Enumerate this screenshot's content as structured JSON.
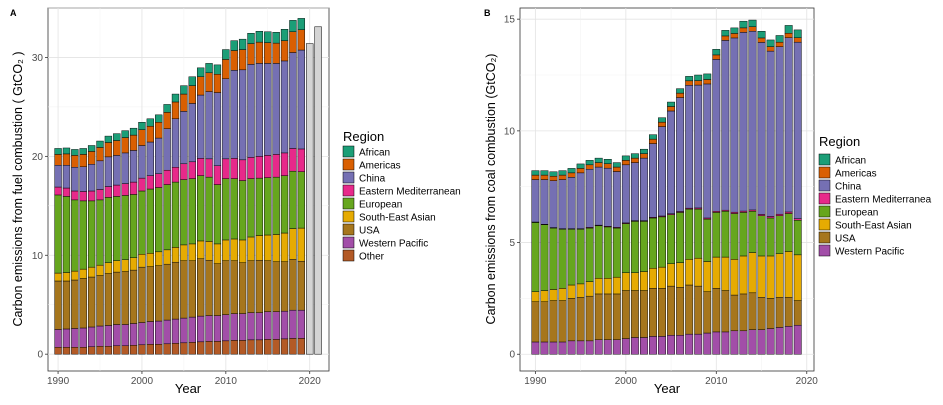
{
  "palette": {
    "African": "#1b9e77",
    "Americas": "#d95f02",
    "China": "#7570b3",
    "Eastern Mediterranean": "#e7298a",
    "European": "#66a61e",
    "South-East Asian": "#e6ab02",
    "USA": "#a6761d",
    "Western Pacific": "#a24ea8",
    "Other": "#b35a26",
    "projection": "#d4d4d4"
  },
  "chart_data": [
    {
      "type": "bar",
      "panel_label": "A",
      "stacked": true,
      "xlabel": "Year",
      "ylabel": "Carbon emissions from fuel combustion ( GtCO₂ )",
      "xlim": [
        1988.8,
        2022.3
      ],
      "ylim": [
        -1.7,
        35
      ],
      "x_ticks": [
        1990,
        2000,
        2010,
        2020
      ],
      "y_ticks": [
        0,
        10,
        20,
        30
      ],
      "grid": true,
      "legend_title": "Region",
      "legend_position": "right",
      "legend": [
        "African",
        "Americas",
        "China",
        "Eastern Mediterranean",
        "European",
        "South-East Asian",
        "USA",
        "Western Pacific",
        "Other"
      ],
      "x": [
        1990,
        1991,
        1992,
        1993,
        1994,
        1995,
        1996,
        1997,
        1998,
        1999,
        2000,
        2001,
        2002,
        2003,
        2004,
        2005,
        2006,
        2007,
        2008,
        2009,
        2010,
        2011,
        2012,
        2013,
        2014,
        2015,
        2016,
        2017,
        2018,
        2019
      ],
      "series": [
        {
          "name": "Other",
          "values": [
            0.7,
            0.7,
            0.7,
            0.7,
            0.75,
            0.8,
            0.8,
            0.85,
            0.85,
            0.9,
            0.95,
            1.0,
            1.0,
            1.05,
            1.1,
            1.15,
            1.2,
            1.25,
            1.3,
            1.3,
            1.35,
            1.4,
            1.4,
            1.45,
            1.45,
            1.5,
            1.5,
            1.55,
            1.6,
            1.6
          ]
        },
        {
          "name": "Western Pacific",
          "values": [
            1.8,
            1.85,
            1.9,
            1.95,
            2.0,
            2.05,
            2.1,
            2.15,
            2.15,
            2.2,
            2.25,
            2.3,
            2.35,
            2.4,
            2.45,
            2.5,
            2.55,
            2.6,
            2.6,
            2.6,
            2.65,
            2.7,
            2.7,
            2.75,
            2.75,
            2.8,
            2.8,
            2.8,
            2.85,
            2.85
          ]
        },
        {
          "name": "USA",
          "values": [
            4.9,
            4.85,
            4.9,
            5.0,
            5.05,
            5.1,
            5.25,
            5.3,
            5.35,
            5.4,
            5.6,
            5.55,
            5.6,
            5.65,
            5.75,
            5.8,
            5.7,
            5.8,
            5.6,
            5.25,
            5.45,
            5.35,
            5.15,
            5.25,
            5.3,
            5.15,
            5.05,
            5.0,
            5.15,
            4.95
          ]
        },
        {
          "name": "South-East Asian",
          "values": [
            0.8,
            0.85,
            0.9,
            0.95,
            1.0,
            1.05,
            1.1,
            1.15,
            1.2,
            1.25,
            1.3,
            1.35,
            1.4,
            1.45,
            1.5,
            1.6,
            1.7,
            1.8,
            1.9,
            2.0,
            2.1,
            2.2,
            2.3,
            2.4,
            2.5,
            2.6,
            2.75,
            2.9,
            3.1,
            3.35
          ]
        },
        {
          "name": "European",
          "values": [
            7.9,
            7.7,
            7.2,
            6.9,
            6.7,
            6.6,
            6.6,
            6.5,
            6.5,
            6.4,
            6.4,
            6.5,
            6.5,
            6.6,
            6.6,
            6.6,
            6.6,
            6.6,
            6.5,
            6.0,
            6.2,
            6.1,
            6.0,
            5.9,
            5.8,
            5.8,
            5.8,
            5.8,
            5.8,
            5.7
          ]
        },
        {
          "name": "Eastern Mediterranean",
          "values": [
            0.8,
            0.85,
            0.9,
            0.95,
            1.0,
            1.05,
            1.1,
            1.15,
            1.2,
            1.25,
            1.3,
            1.35,
            1.4,
            1.45,
            1.5,
            1.6,
            1.7,
            1.75,
            1.85,
            1.9,
            2.0,
            2.05,
            2.1,
            2.15,
            2.2,
            2.25,
            2.3,
            2.3,
            2.3,
            2.3
          ]
        },
        {
          "name": "China",
          "values": [
            2.2,
            2.3,
            2.4,
            2.5,
            2.7,
            2.9,
            3.0,
            3.0,
            3.1,
            3.2,
            3.3,
            3.4,
            3.6,
            4.2,
            4.9,
            5.3,
            5.9,
            6.4,
            6.8,
            7.4,
            8.1,
            8.9,
            9.1,
            9.4,
            9.4,
            9.3,
            9.2,
            9.3,
            9.7,
            10.0
          ]
        },
        {
          "name": "Americas",
          "values": [
            1.1,
            1.15,
            1.2,
            1.25,
            1.3,
            1.35,
            1.45,
            1.5,
            1.55,
            1.55,
            1.6,
            1.6,
            1.6,
            1.65,
            1.7,
            1.75,
            1.8,
            1.85,
            1.9,
            1.85,
            1.95,
            2.0,
            2.05,
            2.1,
            2.15,
            2.1,
            2.05,
            2.05,
            2.1,
            2.05
          ]
        },
        {
          "name": "African",
          "values": [
            0.6,
            0.6,
            0.6,
            0.6,
            0.6,
            0.65,
            0.65,
            0.7,
            0.7,
            0.7,
            0.75,
            0.75,
            0.75,
            0.8,
            0.8,
            0.85,
            0.9,
            0.9,
            0.95,
            0.95,
            1.0,
            1.0,
            1.05,
            1.05,
            1.1,
            1.1,
            1.1,
            1.15,
            1.15,
            1.15
          ]
        }
      ],
      "projection": {
        "x": [
          2020,
          2021
        ],
        "values": [
          31.4,
          33.1
        ]
      }
    },
    {
      "type": "bar",
      "panel_label": "B",
      "stacked": true,
      "xlabel": "Year",
      "ylabel": "Carbon emissions from coal combustion (GtCO₂)",
      "xlim": [
        1988.3,
        2020.8
      ],
      "ylim": [
        -0.75,
        15.5
      ],
      "x_ticks": [
        1990,
        2000,
        2010,
        2020
      ],
      "y_ticks": [
        0,
        5,
        10,
        15
      ],
      "grid": true,
      "legend_title": "Region",
      "legend_position": "right",
      "legend": [
        "African",
        "Americas",
        "China",
        "Eastern Mediterranea",
        "European",
        "South-East Asian",
        "USA",
        "Western Pacific"
      ],
      "x": [
        1990,
        1991,
        1992,
        1993,
        1994,
        1995,
        1996,
        1997,
        1998,
        1999,
        2000,
        2001,
        2002,
        2003,
        2004,
        2005,
        2006,
        2007,
        2008,
        2009,
        2010,
        2011,
        2012,
        2013,
        2014,
        2015,
        2016,
        2017,
        2018,
        2019
      ],
      "series": [
        {
          "name": "Western Pacific",
          "values": [
            0.55,
            0.55,
            0.55,
            0.55,
            0.6,
            0.6,
            0.6,
            0.65,
            0.65,
            0.65,
            0.7,
            0.75,
            0.75,
            0.8,
            0.8,
            0.85,
            0.85,
            0.9,
            0.9,
            0.95,
            1.0,
            1.0,
            1.05,
            1.05,
            1.1,
            1.1,
            1.15,
            1.2,
            1.25,
            1.3
          ]
        },
        {
          "name": "USA",
          "values": [
            1.8,
            1.8,
            1.85,
            1.85,
            1.9,
            1.95,
            2.0,
            2.05,
            2.05,
            2.05,
            2.15,
            2.1,
            2.1,
            2.15,
            2.15,
            2.2,
            2.15,
            2.2,
            2.15,
            1.85,
            1.95,
            1.85,
            1.6,
            1.65,
            1.65,
            1.45,
            1.35,
            1.35,
            1.3,
            1.1
          ]
        },
        {
          "name": "South-East Asian",
          "values": [
            0.45,
            0.5,
            0.5,
            0.55,
            0.6,
            0.6,
            0.65,
            0.7,
            0.7,
            0.75,
            0.8,
            0.8,
            0.85,
            0.9,
            0.95,
            1.0,
            1.1,
            1.15,
            1.25,
            1.35,
            1.4,
            1.5,
            1.6,
            1.7,
            1.8,
            1.85,
            1.9,
            1.95,
            2.05,
            2.05
          ]
        },
        {
          "name": "European",
          "values": [
            3.1,
            2.95,
            2.75,
            2.65,
            2.5,
            2.45,
            2.4,
            2.35,
            2.3,
            2.2,
            2.2,
            2.3,
            2.25,
            2.25,
            2.25,
            2.2,
            2.25,
            2.25,
            2.2,
            1.9,
            2.0,
            2.05,
            2.05,
            1.95,
            1.85,
            1.8,
            1.7,
            1.7,
            1.7,
            1.55
          ]
        },
        {
          "name": "Eastern Mediterranea",
          "values": [
            0.02,
            0.02,
            0.02,
            0.02,
            0.02,
            0.02,
            0.03,
            0.03,
            0.03,
            0.03,
            0.03,
            0.03,
            0.03,
            0.03,
            0.04,
            0.04,
            0.04,
            0.04,
            0.05,
            0.05,
            0.05,
            0.05,
            0.06,
            0.06,
            0.06,
            0.06,
            0.07,
            0.07,
            0.07,
            0.07
          ]
        },
        {
          "name": "China",
          "values": [
            1.9,
            2.0,
            2.1,
            2.2,
            2.3,
            2.5,
            2.6,
            2.6,
            2.6,
            2.5,
            2.6,
            2.6,
            2.8,
            3.3,
            4.0,
            4.6,
            5.1,
            5.5,
            5.5,
            6.0,
            6.8,
            7.6,
            7.8,
            8.0,
            8.0,
            7.7,
            7.4,
            7.5,
            7.8,
            7.9
          ]
        },
        {
          "name": "Americas",
          "values": [
            0.2,
            0.2,
            0.2,
            0.2,
            0.2,
            0.2,
            0.2,
            0.2,
            0.2,
            0.2,
            0.2,
            0.2,
            0.2,
            0.2,
            0.2,
            0.2,
            0.2,
            0.2,
            0.2,
            0.2,
            0.2,
            0.2,
            0.2,
            0.2,
            0.2,
            0.2,
            0.2,
            0.2,
            0.2,
            0.2
          ]
        },
        {
          "name": "African",
          "values": [
            0.2,
            0.2,
            0.2,
            0.2,
            0.2,
            0.2,
            0.2,
            0.2,
            0.2,
            0.2,
            0.2,
            0.2,
            0.2,
            0.2,
            0.2,
            0.2,
            0.2,
            0.2,
            0.25,
            0.25,
            0.25,
            0.25,
            0.25,
            0.3,
            0.3,
            0.3,
            0.3,
            0.3,
            0.35,
            0.35
          ]
        }
      ]
    }
  ]
}
